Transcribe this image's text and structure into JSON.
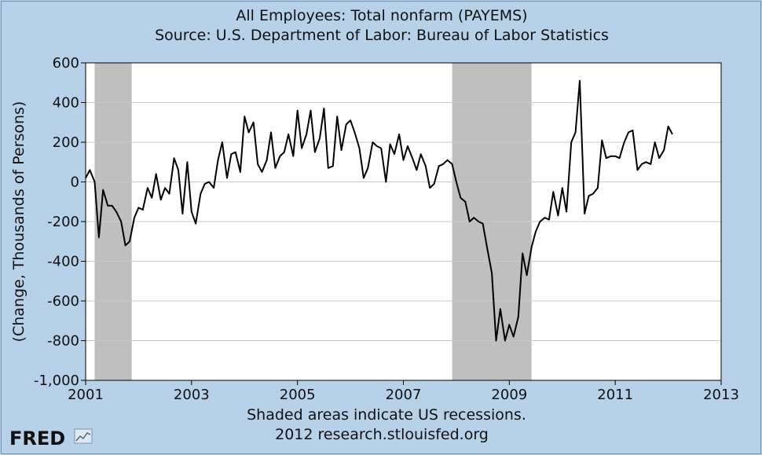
{
  "chart_data": {
    "type": "line",
    "title": "All Employees: Total nonfarm (PAYEMS)",
    "subtitle": "Source: U.S. Department of Labor: Bureau of Labor Statistics",
    "ylabel": "(Change, Thousands of Persons)",
    "xlabel": "Shaded areas indicate US recessions.",
    "footer": "2012 research.stlouisfed.org",
    "logo_text": "FRED",
    "xlim": [
      2001.0,
      2013.0
    ],
    "ylim": [
      -1000,
      600
    ],
    "x_ticks": [
      2001,
      2003,
      2005,
      2007,
      2009,
      2011,
      2013
    ],
    "x_tick_labels": [
      "2001",
      "2003",
      "2005",
      "2007",
      "2009",
      "2011",
      "2013"
    ],
    "y_ticks": [
      -1000,
      -800,
      -600,
      -400,
      -200,
      0,
      200,
      400,
      600
    ],
    "y_tick_labels": [
      "-1,000",
      "-800",
      "-600",
      "-400",
      "-200",
      "0",
      "200",
      "400",
      "600"
    ],
    "grid": true,
    "recessions": [
      [
        2001.17,
        2001.87
      ],
      [
        2007.92,
        2009.42
      ]
    ],
    "series": [
      {
        "color": "#000000",
        "x": [
          2001.0,
          2001.08,
          2001.17,
          2001.25,
          2001.33,
          2001.42,
          2001.5,
          2001.58,
          2001.67,
          2001.75,
          2001.83,
          2001.92,
          2002.0,
          2002.08,
          2002.17,
          2002.25,
          2002.33,
          2002.42,
          2002.5,
          2002.58,
          2002.67,
          2002.75,
          2002.83,
          2002.92,
          2003.0,
          2003.08,
          2003.17,
          2003.25,
          2003.33,
          2003.42,
          2003.5,
          2003.58,
          2003.67,
          2003.75,
          2003.83,
          2003.92,
          2004.0,
          2004.08,
          2004.17,
          2004.25,
          2004.33,
          2004.42,
          2004.5,
          2004.58,
          2004.67,
          2004.75,
          2004.83,
          2004.92,
          2005.0,
          2005.08,
          2005.17,
          2005.25,
          2005.33,
          2005.42,
          2005.5,
          2005.58,
          2005.67,
          2005.75,
          2005.83,
          2005.92,
          2006.0,
          2006.08,
          2006.17,
          2006.25,
          2006.33,
          2006.42,
          2006.5,
          2006.58,
          2006.67,
          2006.75,
          2006.83,
          2006.92,
          2007.0,
          2007.08,
          2007.17,
          2007.25,
          2007.33,
          2007.42,
          2007.5,
          2007.58,
          2007.67,
          2007.75,
          2007.83,
          2007.92,
          2008.0,
          2008.08,
          2008.17,
          2008.25,
          2008.33,
          2008.42,
          2008.5,
          2008.58,
          2008.67,
          2008.75,
          2008.83,
          2008.92,
          2009.0,
          2009.08,
          2009.17,
          2009.25,
          2009.33,
          2009.42,
          2009.5,
          2009.58,
          2009.67,
          2009.75,
          2009.83,
          2009.92,
          2010.0,
          2010.08,
          2010.17,
          2010.25,
          2010.33,
          2010.42,
          2010.5,
          2010.58,
          2010.67,
          2010.75,
          2010.83,
          2010.92,
          2011.0,
          2011.08,
          2011.17,
          2011.25,
          2011.33,
          2011.42,
          2011.5,
          2011.58,
          2011.67,
          2011.75,
          2011.83,
          2011.92,
          2012.0,
          2012.08
        ],
        "y": [
          20,
          60,
          0,
          -280,
          -40,
          -120,
          -120,
          -150,
          -200,
          -320,
          -300,
          -180,
          -130,
          -140,
          -30,
          -80,
          40,
          -90,
          -30,
          -60,
          120,
          60,
          -160,
          100,
          -150,
          -210,
          -60,
          -10,
          0,
          -30,
          110,
          200,
          20,
          140,
          150,
          50,
          330,
          250,
          300,
          90,
          50,
          110,
          250,
          70,
          130,
          150,
          240,
          130,
          360,
          170,
          240,
          360,
          150,
          220,
          370,
          70,
          80,
          330,
          160,
          290,
          310,
          250,
          170,
          20,
          70,
          200,
          180,
          170,
          0,
          190,
          140,
          240,
          110,
          180,
          120,
          60,
          140,
          80,
          -30,
          -10,
          80,
          90,
          110,
          90,
          0,
          -80,
          -100,
          -200,
          -180,
          -200,
          -210,
          -330,
          -460,
          -800,
          -640,
          -800,
          -720,
          -780,
          -680,
          -360,
          -470,
          -330,
          -250,
          -200,
          -180,
          -190,
          -50,
          -170,
          -30,
          -150,
          200,
          250,
          510,
          -160,
          -70,
          -60,
          -30,
          210,
          120,
          130,
          130,
          120,
          200,
          250,
          260,
          60,
          90,
          100,
          90,
          200,
          120,
          160,
          280,
          240
        ]
      }
    ]
  }
}
